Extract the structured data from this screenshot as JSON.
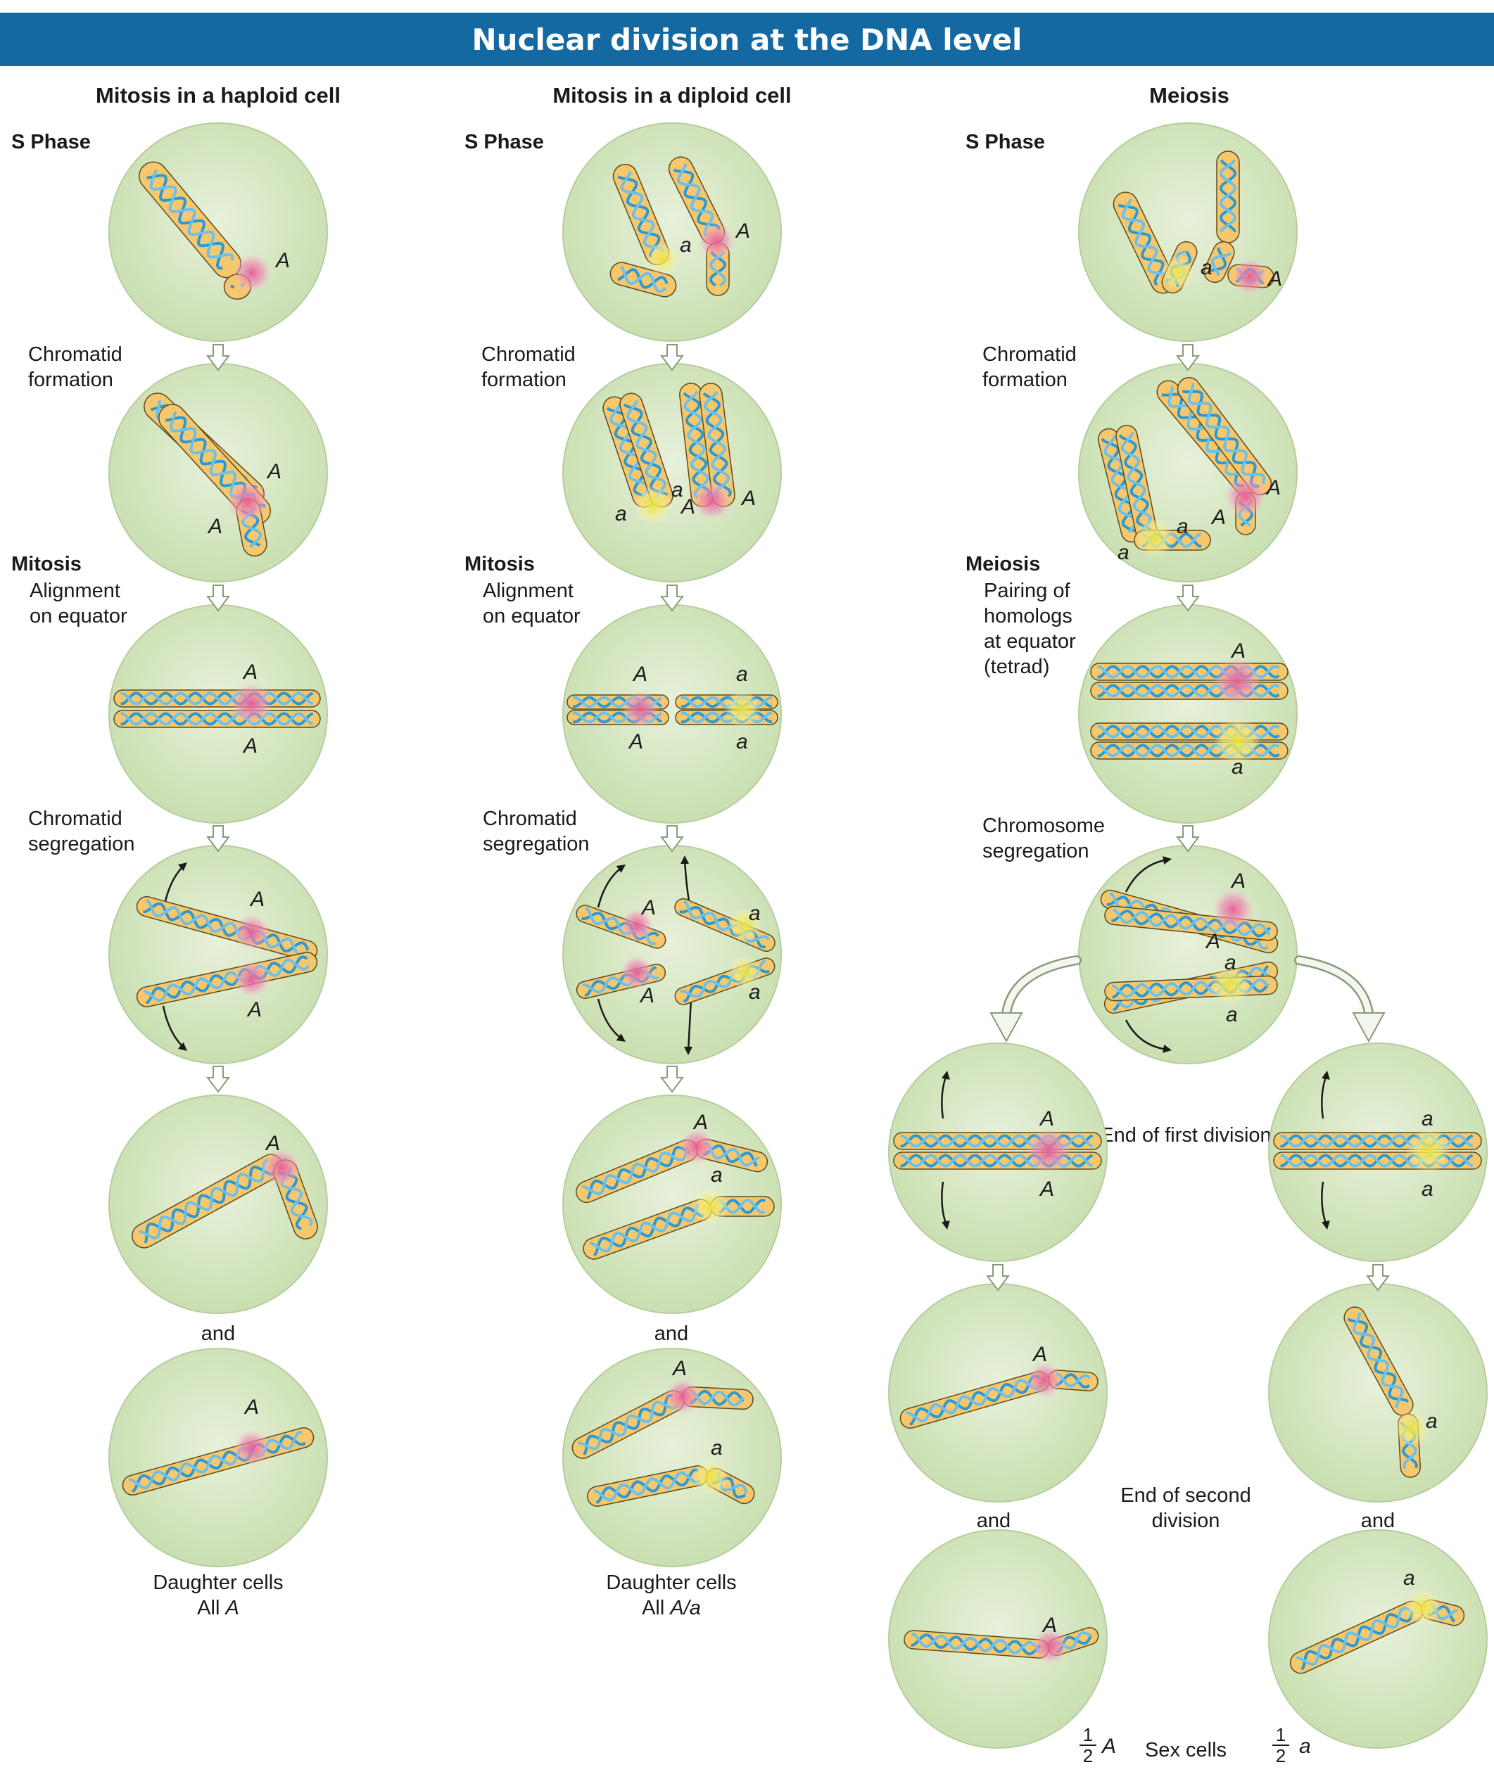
{
  "banner_title": "Nuclear division at the DNA level",
  "columns": {
    "haploid": {
      "title": "Mitosis in a haploid cell",
      "s_phase": "S Phase",
      "chromatid_formation": "Chromatid\nformation",
      "mitosis": "Mitosis",
      "alignment": "Alignment\non equator",
      "segregation": "Chromatid\nsegregation",
      "and": "and",
      "daughter_title": "Daughter cells",
      "daughter_prefix": "All ",
      "daughter_allele": "A"
    },
    "diploid": {
      "title": "Mitosis in a diploid cell",
      "s_phase": "S Phase",
      "chromatid_formation": "Chromatid\nformation",
      "mitosis": "Mitosis",
      "alignment": "Alignment\non equator",
      "segregation": "Chromatid\nsegregation",
      "and": "and",
      "daughter_title": "Daughter cells",
      "daughter_prefix": "All ",
      "daughter_allele": "A/a"
    },
    "meiosis": {
      "title": "Meiosis",
      "s_phase": "S Phase",
      "chromatid_formation": "Chromatid\nformation",
      "meiosis": "Meiosis",
      "pairing": "Pairing of\nhomologs\nat equator\n(tetrad)",
      "segregation": "Chromosome\nsegregation",
      "end_first": "End of\nfirst division",
      "end_second": "End of\nsecond division",
      "and_left": "and",
      "and_right": "and",
      "sex_cells": "Sex cells",
      "half_num": "1",
      "half_den": "2",
      "left_allele": "A",
      "right_allele": "a"
    }
  },
  "alleles": {
    "dominant": "A",
    "recessive": "a"
  },
  "colors": {
    "banner": "#1469a3",
    "cell_fill": "#d4e5bf",
    "cell_center": "#e6f0d8",
    "chromosome": "#f6c86d",
    "dna_strand": "#2a9ad6",
    "centromere_A": "#e86aa0",
    "centromere_a": "#f2ea5a",
    "arrow": "#aab89a"
  }
}
